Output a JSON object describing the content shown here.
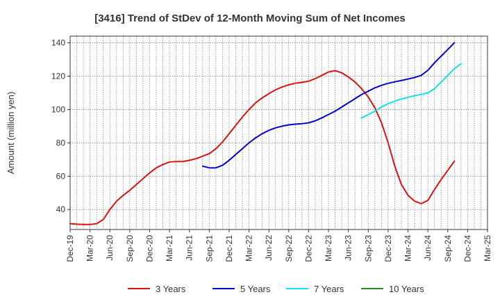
{
  "chart_data": {
    "type": "line",
    "title": "[3416]  Trend of StDev of 12-Month Moving Sum of Net Incomes",
    "xlabel": "",
    "ylabel": "Amount (million yen)",
    "ylim": [
      28,
      144
    ],
    "yticks": [
      40,
      60,
      80,
      100,
      120,
      140
    ],
    "xticks": [
      "Dec-19",
      "Mar-20",
      "Jun-20",
      "Sep-20",
      "Dec-20",
      "Mar-21",
      "Jun-21",
      "Sep-21",
      "Dec-21",
      "Mar-22",
      "Jun-22",
      "Sep-22",
      "Dec-22",
      "Mar-23",
      "Jun-23",
      "Sep-23",
      "Dec-23",
      "Mar-24",
      "Jun-24",
      "Sep-24",
      "Dec-24",
      "Mar-25"
    ],
    "grid": true,
    "legend_position": "bottom",
    "series": [
      {
        "name": "3 Years",
        "color": "#dd1111",
        "points": [
          [
            "Dec-19",
            31.5
          ],
          [
            "Jan-20",
            31.2
          ],
          [
            "Feb-20",
            31.0
          ],
          [
            "Mar-20",
            31.0
          ],
          [
            "Apr-20",
            31.5
          ],
          [
            "May-20",
            34.0
          ],
          [
            "Jun-20",
            40.0
          ],
          [
            "Jul-20",
            45.0
          ],
          [
            "Aug-20",
            48.5
          ],
          [
            "Sep-20",
            51.5
          ],
          [
            "Oct-20",
            55.0
          ],
          [
            "Nov-20",
            58.5
          ],
          [
            "Dec-20",
            62.0
          ],
          [
            "Jan-21",
            65.0
          ],
          [
            "Feb-21",
            67.0
          ],
          [
            "Mar-21",
            68.5
          ],
          [
            "Apr-21",
            68.8
          ],
          [
            "May-21",
            68.8
          ],
          [
            "Jun-21",
            69.5
          ],
          [
            "Jul-21",
            70.5
          ],
          [
            "Aug-21",
            72.0
          ],
          [
            "Sep-21",
            73.5
          ],
          [
            "Oct-21",
            76.5
          ],
          [
            "Nov-21",
            80.5
          ],
          [
            "Dec-21",
            85.5
          ],
          [
            "Jan-22",
            90.5
          ],
          [
            "Feb-22",
            95.5
          ],
          [
            "Mar-22",
            100.0
          ],
          [
            "Apr-22",
            104.0
          ],
          [
            "May-22",
            107.0
          ],
          [
            "Jun-22",
            109.5
          ],
          [
            "Jul-22",
            111.8
          ],
          [
            "Aug-22",
            113.5
          ],
          [
            "Sep-22",
            114.8
          ],
          [
            "Oct-22",
            115.8
          ],
          [
            "Nov-22",
            116.3
          ],
          [
            "Dec-22",
            117.0
          ],
          [
            "Jan-23",
            118.5
          ],
          [
            "Feb-23",
            120.5
          ],
          [
            "Mar-23",
            122.5
          ],
          [
            "Apr-23",
            123.3
          ],
          [
            "May-23",
            122.0
          ],
          [
            "Jun-23",
            119.5
          ],
          [
            "Jul-23",
            116.5
          ],
          [
            "Aug-23",
            112.5
          ],
          [
            "Sep-23",
            107.5
          ],
          [
            "Oct-23",
            101.0
          ],
          [
            "Nov-23",
            92.0
          ],
          [
            "Dec-23",
            80.0
          ],
          [
            "Jan-24",
            66.0
          ],
          [
            "Feb-24",
            55.0
          ],
          [
            "Mar-24",
            48.5
          ],
          [
            "Apr-24",
            45.0
          ],
          [
            "May-24",
            43.5
          ],
          [
            "Jun-24",
            45.5
          ],
          [
            "Jul-24",
            52.0
          ],
          [
            "Aug-24",
            58.0
          ],
          [
            "Sep-24",
            63.5
          ],
          [
            "Oct-24",
            69.0
          ]
        ]
      },
      {
        "name": "5 Years",
        "color": "#0000cc",
        "points": [
          [
            "Aug-21",
            66.0
          ],
          [
            "Sep-21",
            65.0
          ],
          [
            "Oct-21",
            65.0
          ],
          [
            "Nov-21",
            66.5
          ],
          [
            "Dec-21",
            69.5
          ],
          [
            "Jan-22",
            73.0
          ],
          [
            "Feb-22",
            76.5
          ],
          [
            "Mar-22",
            80.0
          ],
          [
            "Apr-22",
            83.0
          ],
          [
            "May-22",
            85.5
          ],
          [
            "Jun-22",
            87.5
          ],
          [
            "Jul-22",
            89.0
          ],
          [
            "Aug-22",
            90.0
          ],
          [
            "Sep-22",
            90.8
          ],
          [
            "Oct-22",
            91.2
          ],
          [
            "Nov-22",
            91.5
          ],
          [
            "Dec-22",
            92.0
          ],
          [
            "Jan-23",
            93.2
          ],
          [
            "Feb-23",
            95.0
          ],
          [
            "Mar-23",
            97.0
          ],
          [
            "Apr-23",
            99.0
          ],
          [
            "May-23",
            101.5
          ],
          [
            "Jun-23",
            104.0
          ],
          [
            "Jul-23",
            106.5
          ],
          [
            "Aug-23",
            109.0
          ],
          [
            "Sep-23",
            111.0
          ],
          [
            "Oct-23",
            113.0
          ],
          [
            "Nov-23",
            114.5
          ],
          [
            "Dec-23",
            115.7
          ],
          [
            "Jan-24",
            116.6
          ],
          [
            "Feb-24",
            117.4
          ],
          [
            "Mar-24",
            118.3
          ],
          [
            "Apr-24",
            119.2
          ],
          [
            "May-24",
            120.5
          ],
          [
            "Jun-24",
            123.5
          ],
          [
            "Jul-24",
            128.0
          ],
          [
            "Aug-24",
            132.0
          ],
          [
            "Sep-24",
            136.0
          ],
          [
            "Oct-24",
            140.0
          ]
        ]
      },
      {
        "name": "7 Years",
        "color": "#11e0ee",
        "points": [
          [
            "Aug-23",
            95.0
          ],
          [
            "Sep-23",
            97.0
          ],
          [
            "Oct-23",
            99.0
          ],
          [
            "Nov-23",
            101.5
          ],
          [
            "Dec-23",
            103.5
          ],
          [
            "Jan-24",
            105.0
          ],
          [
            "Feb-24",
            106.3
          ],
          [
            "Mar-24",
            107.3
          ],
          [
            "Apr-24",
            108.3
          ],
          [
            "May-24",
            109.0
          ],
          [
            "Jun-24",
            110.0
          ],
          [
            "Jul-24",
            112.5
          ],
          [
            "Aug-24",
            116.5
          ],
          [
            "Sep-24",
            120.5
          ],
          [
            "Oct-24",
            124.5
          ],
          [
            "Nov-24",
            127.5
          ]
        ]
      },
      {
        "name": "10 Years",
        "color": "#228b22",
        "points": []
      }
    ]
  }
}
